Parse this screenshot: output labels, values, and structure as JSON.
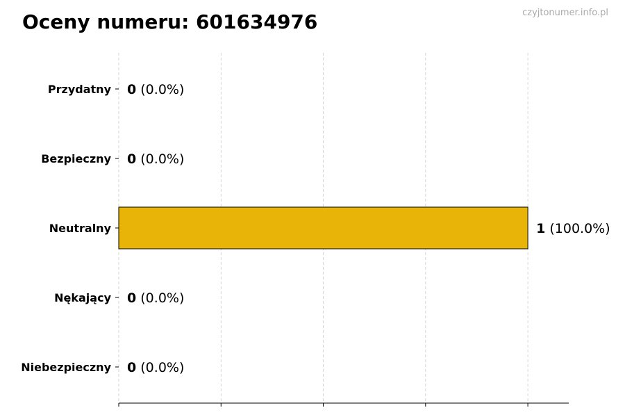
{
  "watermark": "czyjtonumer.info.pl",
  "colors": {
    "bar": "#E8B408",
    "edge": "#000000",
    "grid": "#cccccc",
    "watermark": "#aaaaaa"
  },
  "chart_data": {
    "type": "bar",
    "orientation": "horizontal",
    "title": "Oceny numeru: 601634976",
    "xlabel": "",
    "ylabel": "",
    "categories": [
      "Przydatny",
      "Bezpieczny",
      "Neutralny",
      "Nękający",
      "Niebezpieczny"
    ],
    "values": [
      0,
      0,
      1,
      0,
      0
    ],
    "value_labels": [
      "0",
      "0",
      "1",
      "0",
      "0"
    ],
    "percent_labels": [
      "(0.0%)",
      "(0.0%)",
      "(100.0%)",
      "(0.0%)",
      "(0.0%)"
    ],
    "xlim": [
      0,
      1.1
    ],
    "xticks": [
      0,
      0.25,
      0.5,
      0.75,
      1.0
    ],
    "xtick_labels_shown": false,
    "grid": "x, dashed",
    "legend": "none"
  }
}
